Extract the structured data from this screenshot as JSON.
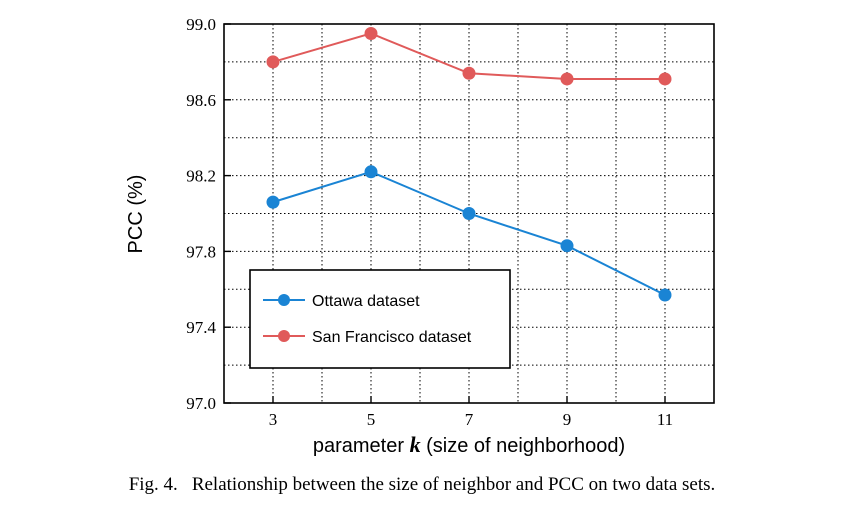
{
  "chart_data": {
    "type": "line",
    "title": "",
    "xlabel_prefix": "parameter ",
    "xlabel_var": "k",
    "xlabel_suffix": " (size of neighborhood)",
    "ylabel": "PCC (%)",
    "x": [
      3,
      5,
      7,
      9,
      11
    ],
    "xticks": [
      "3",
      "5",
      "7",
      "9",
      "11"
    ],
    "xlim": [
      2,
      12
    ],
    "ylim": [
      97.0,
      99.0
    ],
    "yticks": [
      "97.0",
      "97.4",
      "97.8",
      "98.2",
      "98.6",
      "99.0"
    ],
    "ytick_values": [
      97.0,
      97.4,
      97.8,
      98.2,
      98.6,
      99.0
    ],
    "grid": true,
    "legend_position": "lower-left",
    "series": [
      {
        "name": "Ottawa dataset",
        "color": "#1a84d4",
        "values": [
          98.06,
          98.22,
          98.0,
          97.83,
          97.57
        ]
      },
      {
        "name": "San Francisco dataset",
        "color": "#e05a5a",
        "values": [
          98.8,
          98.95,
          98.74,
          98.71,
          98.71
        ]
      }
    ]
  },
  "caption": {
    "label": "Fig. 4.",
    "text": "Relationship between the size of neighbor and PCC on two data sets."
  }
}
